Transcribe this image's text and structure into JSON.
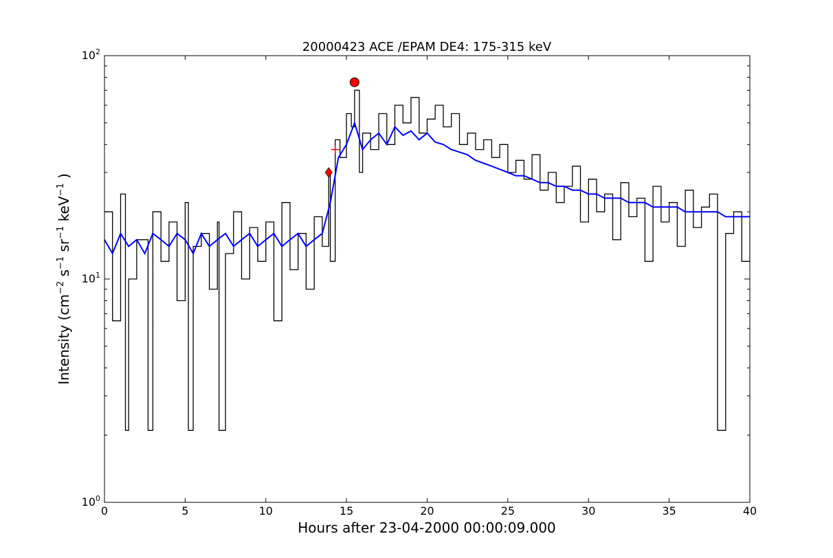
{
  "chart_data": {
    "type": "line",
    "title": "20000423 ACE /EPAM DE4: 175-315 keV",
    "xlabel": "Hours after 23-04-2000 00:00:09.000",
    "ylabel": {
      "main": "Intensity (cm",
      "e1": "−2",
      "t1": " s",
      "e2": "−1",
      "t2": " sr",
      "e3": "−1",
      "t3": " keV",
      "e4": "−1",
      "t4": " )"
    },
    "xlim": [
      0,
      40
    ],
    "ylim": [
      1,
      100
    ],
    "yscale": "log",
    "x_ticks": [
      0,
      5,
      10,
      15,
      20,
      25,
      30,
      35,
      40
    ],
    "x_tick_labels": [
      "0",
      "5",
      "10",
      "15",
      "20",
      "25",
      "30",
      "35",
      "40"
    ],
    "y_ticks": [
      1,
      10,
      100
    ],
    "y_tick_labels": [
      {
        "base": "10",
        "exp": "0"
      },
      {
        "base": "10",
        "exp": "1"
      },
      {
        "base": "10",
        "exp": "2"
      }
    ],
    "grid": false,
    "legend": "none",
    "series": [
      {
        "color": "#000000",
        "style": "steps",
        "x": [
          0,
          0.5,
          1,
          1.3,
          1.5,
          2,
          2.7,
          3,
          3.5,
          4,
          4.5,
          5,
          5.2,
          5.5,
          6,
          6.5,
          7,
          7.1,
          7.5,
          8,
          8.5,
          9,
          9.5,
          10,
          10.5,
          11,
          11.5,
          12,
          12.5,
          13,
          13.5,
          13.9,
          14,
          14.3,
          14.6,
          15,
          15.3,
          15.5,
          15.8,
          16,
          16.5,
          17,
          17.5,
          18,
          18.5,
          19,
          19.5,
          20,
          20.5,
          21,
          21.5,
          22,
          22.5,
          23,
          23.5,
          24,
          24.5,
          25,
          25.5,
          26,
          26.5,
          27,
          27.5,
          28,
          28.5,
          29,
          29.5,
          30,
          30.5,
          31,
          31.5,
          32,
          32.5,
          33,
          33.5,
          34,
          34.5,
          35,
          35.5,
          36,
          36.5,
          37,
          37.5,
          38,
          38.5,
          39,
          39.5,
          40
        ],
        "y": [
          20,
          6.5,
          24,
          2.1,
          10,
          15,
          2.1,
          20,
          12,
          18,
          8,
          22,
          2.1,
          14,
          16,
          9,
          18,
          2.1,
          13,
          20,
          10,
          17,
          12,
          18,
          6.5,
          22,
          11,
          16,
          9,
          19,
          14,
          30,
          12,
          42,
          35,
          55,
          48,
          70,
          30,
          45,
          38,
          55,
          40,
          60,
          50,
          65,
          45,
          52,
          60,
          48,
          55,
          40,
          45,
          38,
          42,
          35,
          40,
          30,
          34,
          28,
          36,
          25,
          30,
          22,
          26,
          32,
          18,
          28,
          20,
          24,
          15,
          27,
          19,
          23,
          12,
          26,
          18,
          22,
          14,
          25,
          17,
          21,
          24,
          2.1,
          16,
          20,
          12,
          18
        ]
      },
      {
        "color": "#0000ff",
        "style": "line",
        "x": [
          0,
          0.5,
          1,
          1.5,
          2,
          2.5,
          3,
          3.5,
          4,
          4.5,
          5,
          5.5,
          6,
          6.5,
          7,
          7.5,
          8,
          8.5,
          9,
          9.5,
          10,
          10.5,
          11,
          11.5,
          12,
          12.5,
          13,
          13.5,
          14,
          14.5,
          15,
          15.5,
          16,
          16.5,
          17,
          17.5,
          18,
          18.5,
          19,
          19.5,
          20,
          20.5,
          21,
          21.5,
          22,
          22.5,
          23,
          23.5,
          24,
          24.5,
          25,
          25.5,
          26,
          26.5,
          27,
          27.5,
          28,
          28.5,
          29,
          29.5,
          30,
          30.5,
          31,
          31.5,
          32,
          32.5,
          33,
          33.5,
          34,
          34.5,
          35,
          35.5,
          36,
          36.5,
          37,
          37.5,
          38,
          38.5,
          39,
          39.5,
          40
        ],
        "y": [
          15,
          13,
          16,
          14,
          15,
          13,
          16,
          15,
          14,
          16,
          15,
          13,
          16,
          14,
          15,
          16,
          14,
          15,
          16,
          14,
          15,
          16,
          14,
          15,
          16,
          14,
          15,
          16,
          22,
          35,
          40,
          50,
          38,
          42,
          45,
          40,
          48,
          44,
          46,
          42,
          45,
          41,
          40,
          38,
          37,
          36,
          34,
          33,
          32,
          31,
          30,
          29,
          29,
          28,
          27,
          27,
          26,
          26,
          25,
          25,
          24,
          24,
          23,
          23,
          23,
          22,
          22,
          22,
          21,
          21,
          21,
          21,
          20,
          20,
          20,
          20,
          20,
          19,
          19,
          19,
          19
        ]
      }
    ],
    "markers": [
      {
        "shape": "diamond",
        "x": 13.9,
        "y": 30,
        "color": "#ff0000"
      },
      {
        "shape": "plus",
        "x": 14.3,
        "y": 38,
        "color": "#ff0000"
      },
      {
        "shape": "circle",
        "x": 15.5,
        "y": 76,
        "color": "#ff0000"
      }
    ]
  }
}
